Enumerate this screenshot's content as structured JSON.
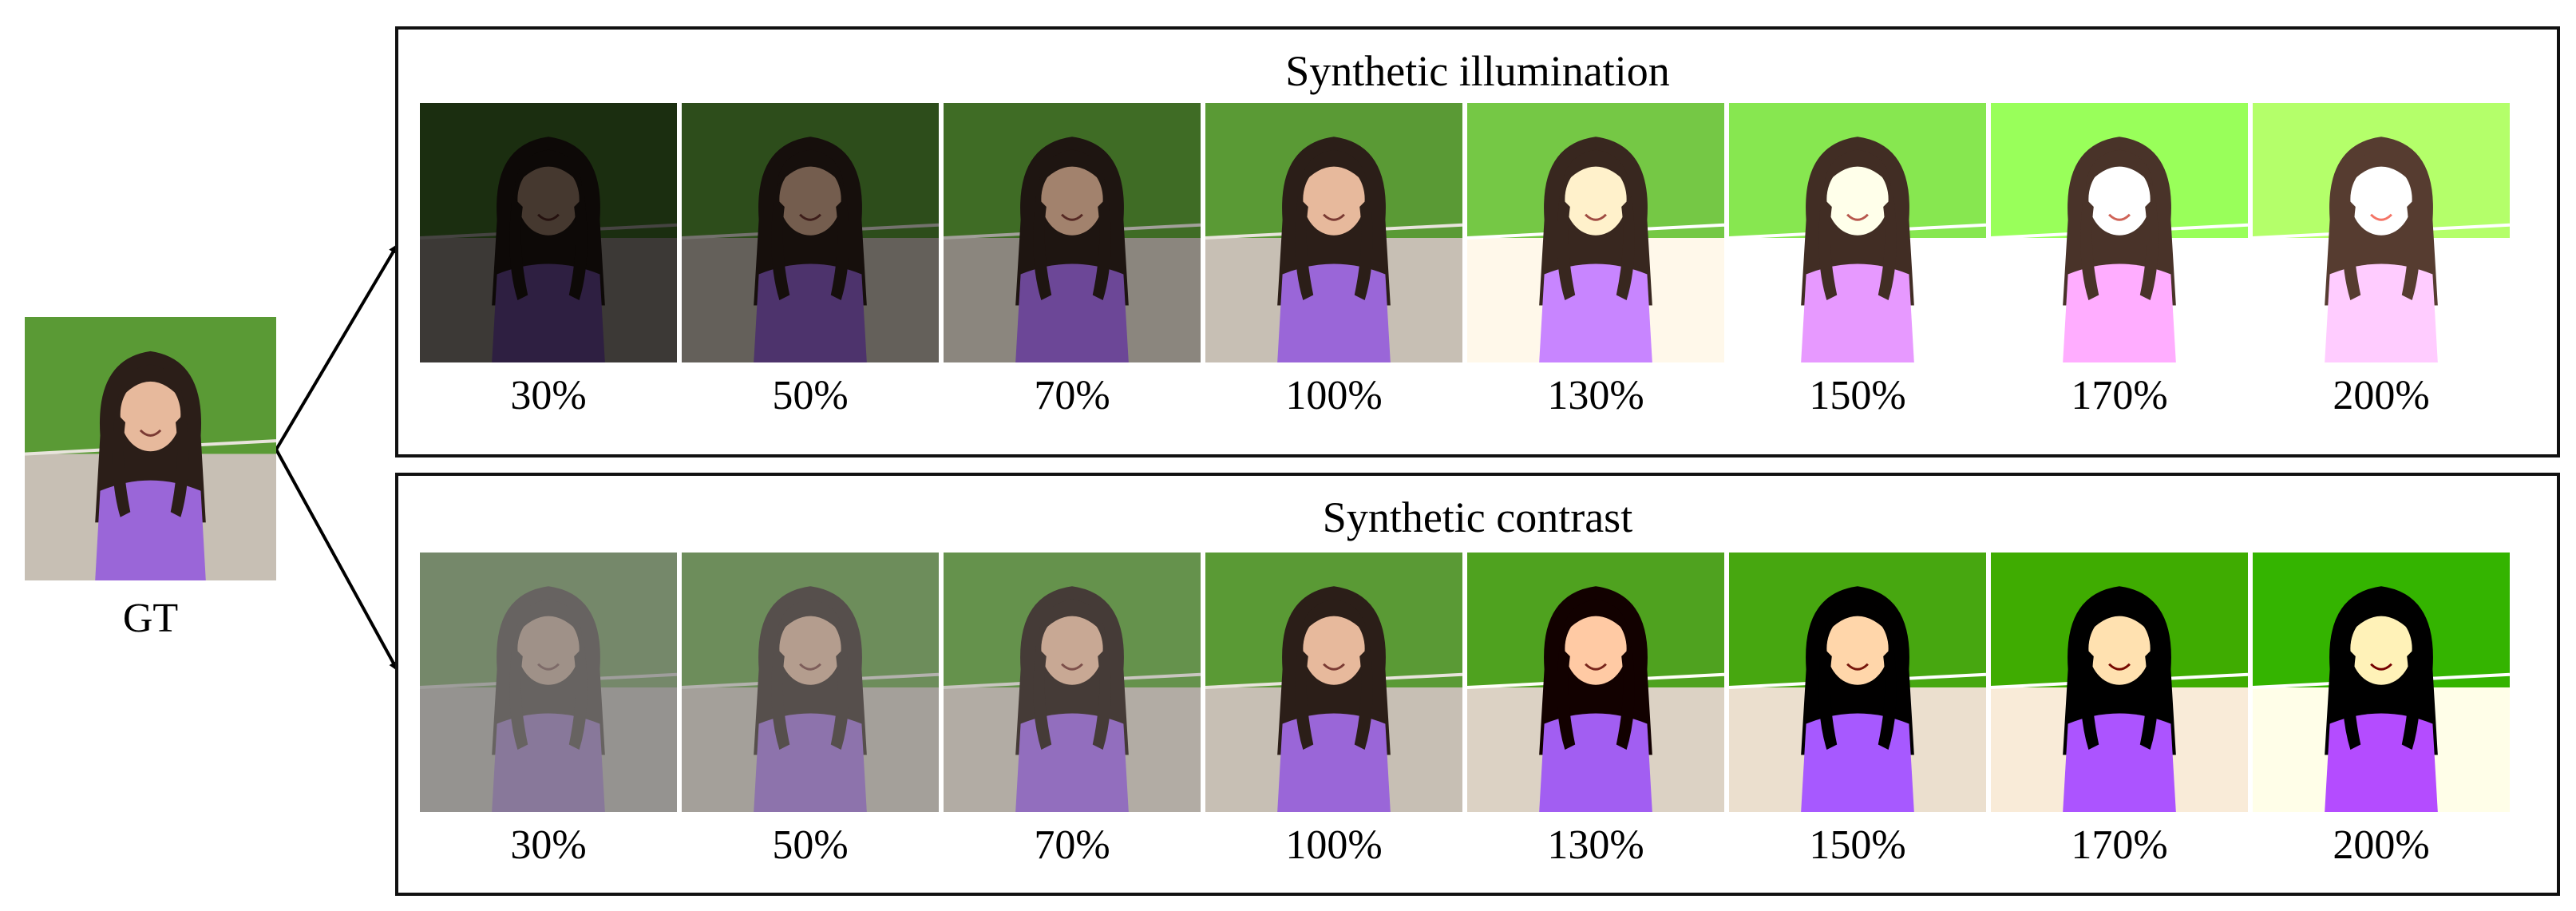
{
  "gt": {
    "label": "GT"
  },
  "panels": [
    {
      "id": "illumination",
      "title": "Synthetic illumination",
      "items": [
        {
          "label": "30%",
          "factor": 0.3
        },
        {
          "label": "50%",
          "factor": 0.5
        },
        {
          "label": "70%",
          "factor": 0.7
        },
        {
          "label": "100%",
          "factor": 1.0
        },
        {
          "label": "130%",
          "factor": 1.3
        },
        {
          "label": "150%",
          "factor": 1.5
        },
        {
          "label": "170%",
          "factor": 1.7
        },
        {
          "label": "200%",
          "factor": 2.0
        }
      ]
    },
    {
      "id": "contrast",
      "title": "Synthetic contrast",
      "items": [
        {
          "label": "30%",
          "factor": 0.3
        },
        {
          "label": "50%",
          "factor": 0.5
        },
        {
          "label": "70%",
          "factor": 0.7
        },
        {
          "label": "100%",
          "factor": 1.0
        },
        {
          "label": "130%",
          "factor": 1.3
        },
        {
          "label": "150%",
          "factor": 1.5
        },
        {
          "label": "170%",
          "factor": 1.7
        },
        {
          "label": "200%",
          "factor": 2.0
        }
      ]
    }
  ],
  "colors": {
    "grass": "#5a9a35",
    "ground": "#c7bfb4",
    "hair": "#2b1e18",
    "skin": "#e7b99c",
    "shirt": "#9a66d8",
    "border": "#111111",
    "arrow": "#000000"
  }
}
